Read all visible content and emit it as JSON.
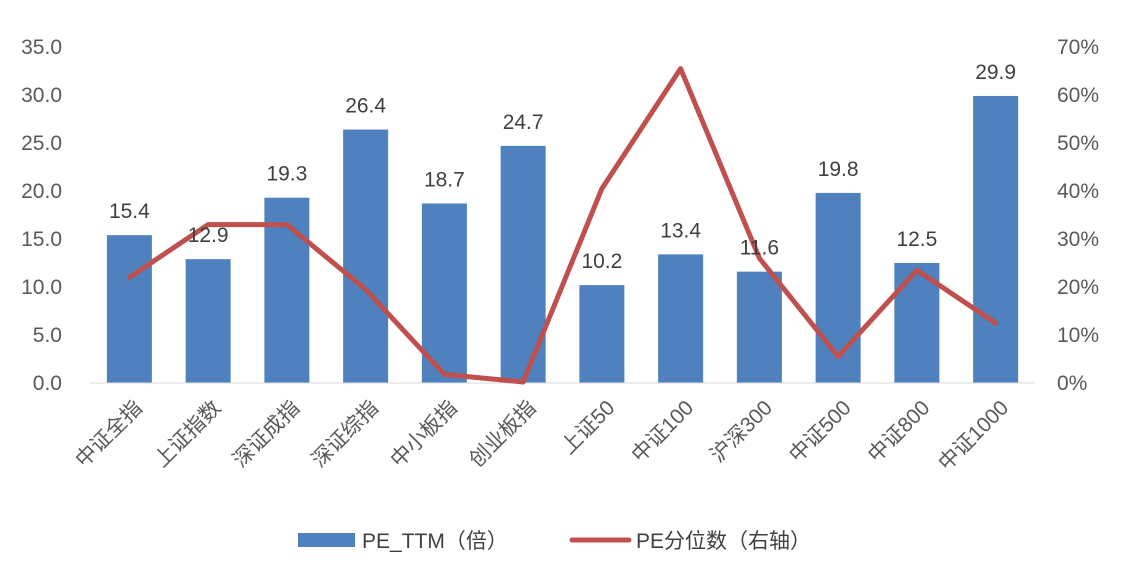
{
  "chart_data": {
    "type": "bar",
    "categories": [
      "中证全指",
      "上证指数",
      "深证成指",
      "深证综指",
      "中小板指",
      "创业板指",
      "上证50",
      "中证100",
      "沪深300",
      "中证500",
      "中证800",
      "中证1000"
    ],
    "series": [
      {
        "name": "PE_TTM（倍）",
        "type": "bar",
        "axis": "left",
        "color": "#4E81BD",
        "values": [
          15.4,
          12.9,
          19.3,
          26.4,
          18.7,
          24.7,
          10.2,
          13.4,
          11.6,
          19.8,
          12.5,
          29.9
        ],
        "labels": [
          "15.4",
          "12.9",
          "19.3",
          "26.4",
          "18.7",
          "24.7",
          "10.2",
          "13.4",
          "11.6",
          "19.8",
          "12.5",
          "29.9"
        ]
      },
      {
        "name": "PE分位数（右轴）",
        "type": "line",
        "axis": "right",
        "color": "#C0504D",
        "values": [
          0.22,
          0.33,
          0.33,
          0.195,
          0.018,
          0.002,
          0.405,
          0.655,
          0.26,
          0.055,
          0.235,
          0.125
        ]
      }
    ],
    "y_left": {
      "min": 0,
      "max": 35,
      "step": 5,
      "tick_labels": [
        "0.0",
        "5.0",
        "10.0",
        "15.0",
        "20.0",
        "25.0",
        "30.0",
        "35.0"
      ]
    },
    "y_right": {
      "min": 0,
      "max": 0.7,
      "step": 0.1,
      "tick_labels": [
        "0%",
        "10%",
        "20%",
        "30%",
        "40%",
        "50%",
        "60%",
        "70%"
      ]
    },
    "grid": false,
    "legend": "bottom"
  }
}
